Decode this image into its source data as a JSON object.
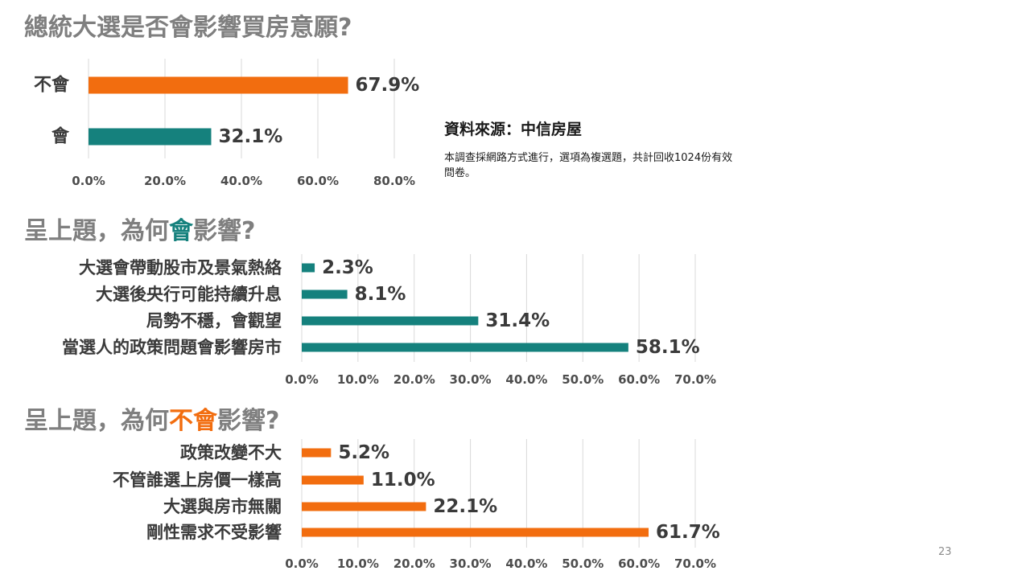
{
  "colors": {
    "heading": "#7f7f7f",
    "teal": "#15817d",
    "orange": "#f26d0f"
  },
  "headings": {
    "top": "總統大選是否會影響買房意願?",
    "middle": {
      "before": "呈上題，為何",
      "highlight": "會",
      "after": "影響?"
    },
    "bottom": {
      "before": "呈上題，為何",
      "highlight": "不會",
      "after": "影響?"
    }
  },
  "source": {
    "title": "資料來源：中信房屋",
    "note": "本調查採網路方式進行，選項為複選題，共計回收1024份有效問卷。"
  },
  "page_number": "23",
  "chart_data": [
    {
      "type": "bar",
      "orientation": "horizontal",
      "categories": [
        "不會",
        "會"
      ],
      "values": [
        67.9,
        32.1
      ],
      "value_labels": [
        "67.9%",
        "32.1%"
      ],
      "bar_colors": [
        "#f26d0f",
        "#15817d"
      ],
      "xlim": [
        0,
        80
      ],
      "ticks": [
        0,
        20,
        40,
        60,
        80
      ],
      "tick_labels": [
        "0.0%",
        "20.0%",
        "40.0%",
        "60.0%",
        "80.0%"
      ],
      "grid": true
    },
    {
      "type": "bar",
      "orientation": "horizontal",
      "categories": [
        "大選會帶動股市及景氣熱絡",
        "大選後央行可能持續升息",
        "局勢不穩，會觀望",
        "當選人的政策問題會影響房市"
      ],
      "values": [
        2.3,
        8.1,
        31.4,
        58.1
      ],
      "value_labels": [
        "2.3%",
        "8.1%",
        "31.4%",
        "58.1%"
      ],
      "bar_color": "#15817d",
      "xlim": [
        0,
        70
      ],
      "ticks": [
        0,
        10,
        20,
        30,
        40,
        50,
        60,
        70
      ],
      "tick_labels": [
        "0.0%",
        "10.0%",
        "20.0%",
        "30.0%",
        "40.0%",
        "50.0%",
        "60.0%",
        "70.0%"
      ],
      "grid": true
    },
    {
      "type": "bar",
      "orientation": "horizontal",
      "categories": [
        "政策改變不大",
        "不管誰選上房價一樣高",
        "大選與房市無關",
        "剛性需求不受影響"
      ],
      "values": [
        5.2,
        11.0,
        22.1,
        61.7
      ],
      "value_labels": [
        "5.2%",
        "11.0%",
        "22.1%",
        "61.7%"
      ],
      "bar_color": "#f26d0f",
      "xlim": [
        0,
        70
      ],
      "ticks": [
        0,
        10,
        20,
        30,
        40,
        50,
        60,
        70
      ],
      "tick_labels": [
        "0.0%",
        "10.0%",
        "20.0%",
        "30.0%",
        "40.0%",
        "50.0%",
        "60.0%",
        "70.0%"
      ],
      "grid": true
    }
  ]
}
